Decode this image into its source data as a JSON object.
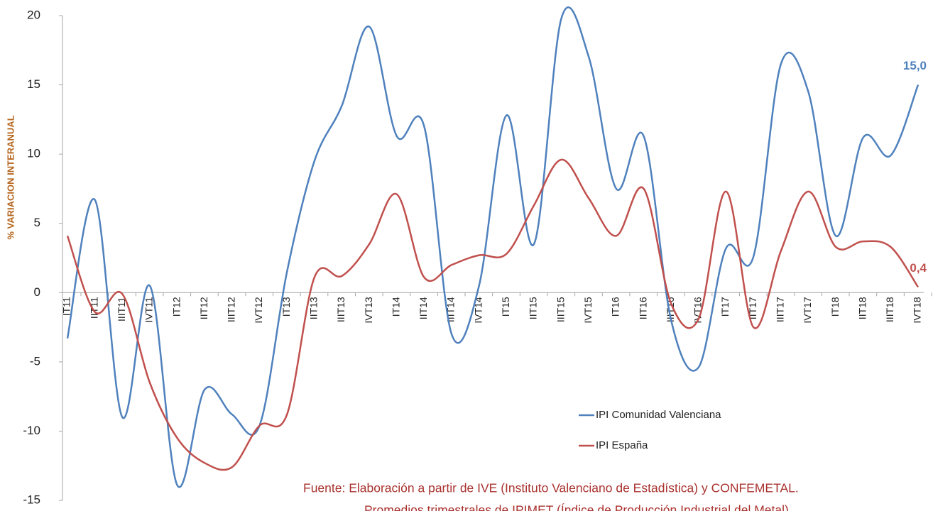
{
  "chart_data": {
    "type": "line",
    "y_label": "% VARIACION INTERANUAL",
    "categories": [
      "IT11",
      "IIT11",
      "IIIT11",
      "IVT11",
      "IT12",
      "IIT12",
      "IIIT12",
      "IVT12",
      "IT13",
      "IIT13",
      "IIIT13",
      "IVT13",
      "IT14",
      "IIT14",
      "IIIT14",
      "IVT14",
      "IT15",
      "IIT15",
      "IIIT15",
      "IVT15",
      "IT16",
      "IIT16",
      "IIIT16",
      "IVT16",
      "IT17",
      "IIT17",
      "IIIT17",
      "IVT17",
      "IT18",
      "IIT18",
      "IIIT18",
      "IVT18"
    ],
    "series": [
      {
        "name": "IPI Comunidad Valenciana",
        "color": "#4f81bd",
        "values": [
          -3.3,
          6.7,
          -9.0,
          0.5,
          -13.9,
          -7.0,
          -8.8,
          -9.6,
          1.5,
          9.5,
          13.5,
          19.2,
          11.3,
          12.0,
          -3.0,
          0.5,
          12.8,
          3.5,
          19.8,
          17.0,
          7.5,
          11.3,
          -2.0,
          -5.4,
          3.2,
          2.6,
          16.5,
          14.5,
          4.1,
          11.2,
          9.9,
          15.0
        ],
        "value_labels": [
          null,
          null,
          null,
          null,
          null,
          null,
          null,
          null,
          null,
          null,
          null,
          null,
          null,
          null,
          null,
          null,
          null,
          null,
          null,
          null,
          null,
          null,
          null,
          null,
          null,
          null,
          null,
          null,
          null,
          null,
          null,
          "15,0"
        ]
      },
      {
        "name": "IPI España",
        "color": "#c0504d",
        "values": [
          4.1,
          -1.4,
          -0.1,
          -6.5,
          -10.5,
          -12.3,
          -12.6,
          -9.6,
          -8.8,
          1.1,
          1.2,
          3.5,
          7.1,
          1.1,
          2.0,
          2.7,
          2.8,
          6.3,
          9.6,
          6.8,
          4.1,
          7.5,
          -0.8,
          -1.9,
          7.3,
          -2.5,
          3.0,
          7.3,
          3.3,
          3.7,
          3.3,
          0.4
        ],
        "value_labels": [
          null,
          null,
          null,
          null,
          null,
          null,
          null,
          null,
          null,
          null,
          null,
          null,
          null,
          null,
          null,
          null,
          null,
          null,
          null,
          null,
          null,
          null,
          null,
          null,
          null,
          null,
          null,
          null,
          null,
          null,
          null,
          "0,4"
        ]
      }
    ],
    "ylim": [
      -15,
      20
    ],
    "yticks": [
      20,
      15,
      10,
      5,
      0,
      -5,
      -10,
      -15
    ],
    "legend": "lower-right",
    "smooth": true,
    "source": [
      "Fuente: Elaboración a partir de IVE (Instituto Valenciano de Estadística) y CONFEMETAL.",
      "Promedios trimestrales de IPIMET (Índice de Producción Industrial del Metal)"
    ]
  }
}
